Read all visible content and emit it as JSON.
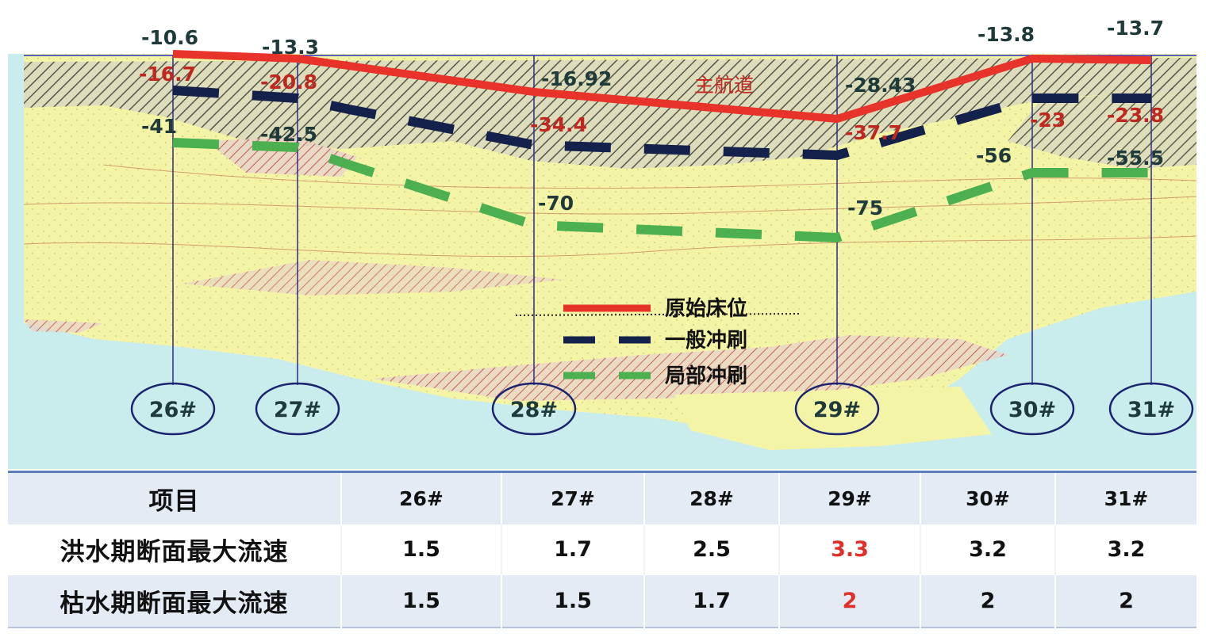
{
  "figure": {
    "channel_label": "主航道",
    "piers": [
      "26#",
      "27#",
      "28#",
      "29#",
      "30#",
      "31#"
    ],
    "original_bed": [
      "-10.6",
      "-13.3",
      "-16.92",
      "-28.43",
      "-13.8",
      "-13.7"
    ],
    "general_scour": [
      "-16.7",
      "-20.8",
      "-34.4",
      "-37.7",
      "-23",
      "-23.8"
    ],
    "local_scour": [
      "-41",
      "-42.5",
      "-70",
      "-75",
      "-56",
      "-55.5"
    ],
    "legend": {
      "original": "原始床位",
      "general": "一般冲刷",
      "local": "局部冲刷"
    },
    "colors": {
      "original": "#e8332a",
      "general": "#14214a",
      "local": "#4caf50",
      "label_red": "#c0271f",
      "label_dark": "#1e3a3a",
      "circle": "#1a2470",
      "sand": "#f3f3a0",
      "water": "#c9ecec"
    }
  },
  "table": {
    "header": [
      "项目",
      "26#",
      "27#",
      "28#",
      "29#",
      "30#",
      "31#"
    ],
    "rows": [
      {
        "label": "洪水期断面最大流速",
        "values": [
          "1.5",
          "1.7",
          "2.5",
          "3.3",
          "3.2",
          "3.2"
        ]
      },
      {
        "label": "枯水期断面最大流速",
        "values": [
          "1.5",
          "1.5",
          "1.7",
          "2",
          "2",
          "2"
        ]
      }
    ]
  }
}
